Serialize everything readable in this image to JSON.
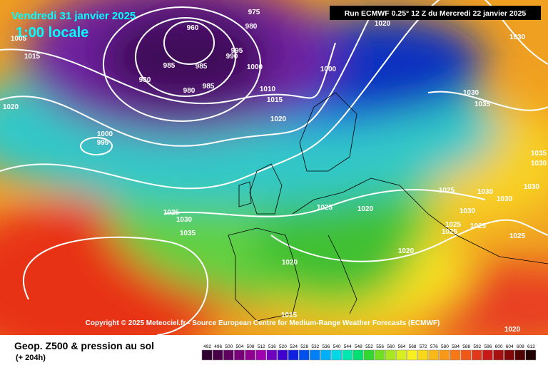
{
  "header": {
    "date": "Vendredi 31 janvier 2025",
    "time": "1:00 locale",
    "run": "Run ECMWF 0.25° 12 Z du Mercredi 22 janvier 2025"
  },
  "copyright": "Copyright © 2025 Meteociel.fr - Source European Centre for Medium-Range Weather Forecasts (ECMWF)",
  "footer": {
    "title": "Geop. Z500 & pression au sol",
    "lead": "(+ 204h)"
  },
  "legend": {
    "values": [
      492,
      496,
      500,
      504,
      508,
      512,
      516,
      520,
      524,
      528,
      532,
      536,
      540,
      544,
      548,
      552,
      556,
      560,
      564,
      568,
      572,
      576,
      580,
      584,
      588,
      592,
      596,
      600,
      604,
      608,
      612
    ]
  },
  "isobar_labels": [
    "1005",
    "1015",
    "1020",
    "985",
    "980",
    "960",
    "985",
    "980",
    "985",
    "975",
    "980",
    "995",
    "990",
    "1000",
    "1010",
    "1015",
    "1020",
    "1000",
    "1020",
    "1030",
    "1030",
    "1035",
    "1000",
    "995",
    "1025",
    "1030",
    "1035",
    "1025",
    "1020",
    "1025",
    "1030",
    "1030",
    "1030",
    "1025",
    "1025",
    "1025",
    "1025",
    "1020",
    "1030",
    "1035",
    "1030",
    "1020",
    "1015",
    "1020"
  ]
}
